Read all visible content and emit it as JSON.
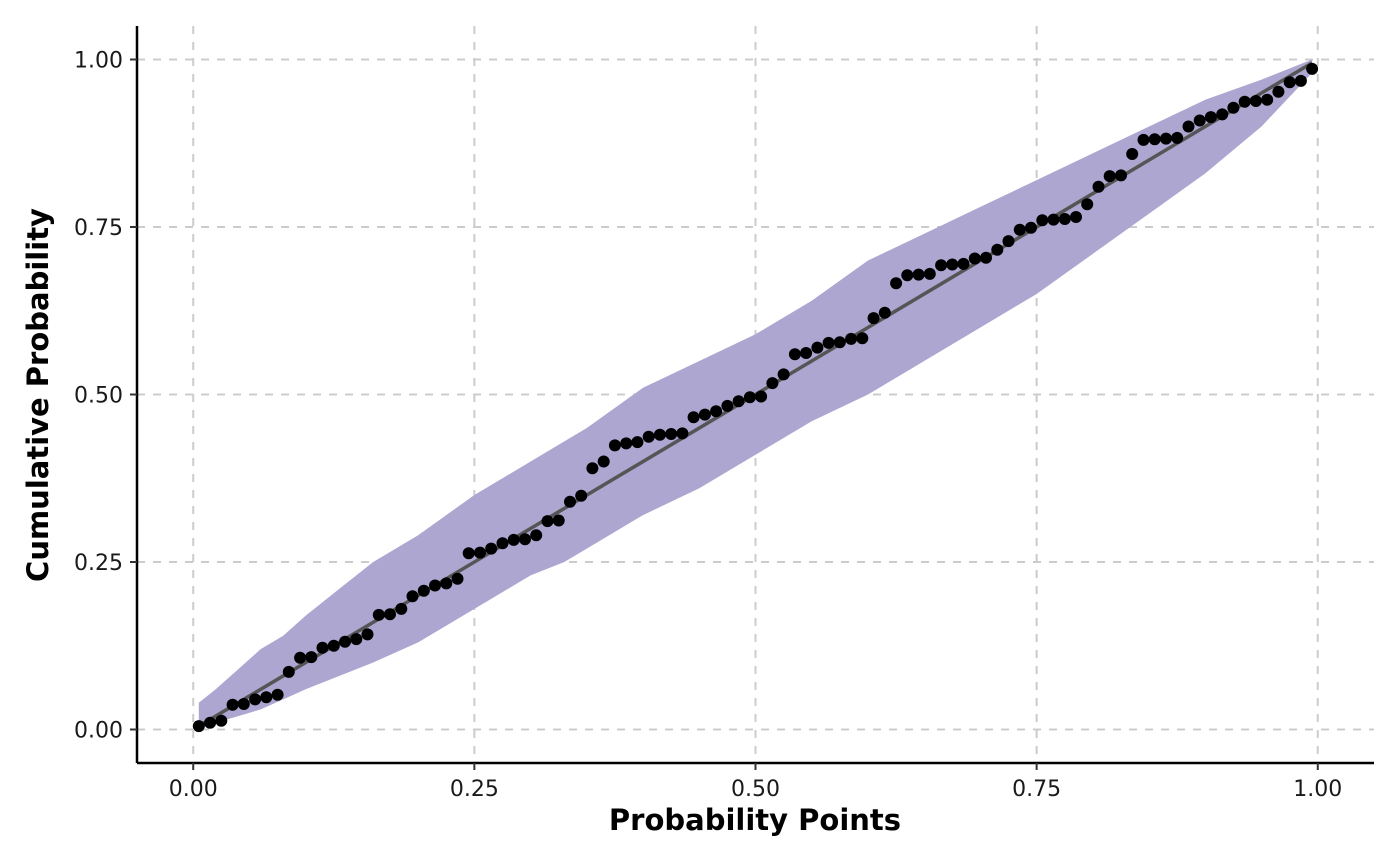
{
  "chart_data": {
    "type": "scatter",
    "title": "",
    "xlabel": "Probability Points",
    "ylabel": "Cumulative Probability",
    "xlim": [
      -0.05,
      1.05
    ],
    "ylim": [
      -0.05,
      1.05
    ],
    "x_ticks": [
      0,
      0.25,
      0.5,
      0.75,
      1
    ],
    "y_ticks": [
      0,
      0.25,
      0.5,
      0.75,
      1
    ],
    "x_tick_labels": [
      "0.00",
      "0.25",
      "0.50",
      "0.75",
      "1.00"
    ],
    "y_tick_labels": [
      "0.00",
      "0.25",
      "0.50",
      "0.75",
      "1.00"
    ],
    "grid": "dashed",
    "legend": "none",
    "colors": {
      "band": "#aca6d1",
      "line": "#555555",
      "points": "#000000",
      "grid": "#cccccc"
    },
    "reference_line": {
      "from": [
        0.005,
        0.005
      ],
      "to": [
        0.995,
        0.995
      ]
    },
    "confidence_band": {
      "x": [
        0.005,
        0.02,
        0.04,
        0.06,
        0.08,
        0.1,
        0.13,
        0.16,
        0.2,
        0.25,
        0.3,
        0.33,
        0.35,
        0.4,
        0.45,
        0.5,
        0.55,
        0.6,
        0.65,
        0.7,
        0.75,
        0.8,
        0.85,
        0.9,
        0.95,
        0.995
      ],
      "upper": [
        0.04,
        0.06,
        0.09,
        0.12,
        0.14,
        0.17,
        0.21,
        0.25,
        0.29,
        0.35,
        0.4,
        0.43,
        0.45,
        0.51,
        0.55,
        0.59,
        0.64,
        0.7,
        0.74,
        0.78,
        0.82,
        0.86,
        0.9,
        0.94,
        0.97,
        1.0
      ],
      "lower": [
        0.0,
        0.01,
        0.02,
        0.03,
        0.045,
        0.06,
        0.08,
        0.1,
        0.13,
        0.18,
        0.23,
        0.25,
        0.27,
        0.32,
        0.36,
        0.41,
        0.46,
        0.5,
        0.55,
        0.6,
        0.65,
        0.71,
        0.77,
        0.83,
        0.9,
        0.98
      ]
    },
    "series": [
      {
        "x": [
          0.005,
          0.015,
          0.025,
          0.035,
          0.045,
          0.055,
          0.065,
          0.075,
          0.085,
          0.095,
          0.105,
          0.115,
          0.125,
          0.135,
          0.145,
          0.155,
          0.165,
          0.175,
          0.185,
          0.195,
          0.205,
          0.215,
          0.225,
          0.235,
          0.245,
          0.255,
          0.265,
          0.275,
          0.285,
          0.295,
          0.305,
          0.315,
          0.325,
          0.335,
          0.345,
          0.355,
          0.365,
          0.375,
          0.385,
          0.395,
          0.405,
          0.415,
          0.425,
          0.435,
          0.445,
          0.455,
          0.465,
          0.475,
          0.485,
          0.495,
          0.505,
          0.515,
          0.525,
          0.535,
          0.545,
          0.555,
          0.565,
          0.575,
          0.585,
          0.595,
          0.605,
          0.615,
          0.625,
          0.635,
          0.645,
          0.655,
          0.665,
          0.675,
          0.685,
          0.695,
          0.705,
          0.715,
          0.725,
          0.735,
          0.745,
          0.755,
          0.765,
          0.775,
          0.785,
          0.795,
          0.805,
          0.815,
          0.825,
          0.835,
          0.845,
          0.855,
          0.865,
          0.875,
          0.885,
          0.895,
          0.905,
          0.915,
          0.925,
          0.935,
          0.945,
          0.955,
          0.965,
          0.975,
          0.985,
          0.995
        ],
        "y": [
          0.005,
          0.01,
          0.013,
          0.037,
          0.038,
          0.045,
          0.048,
          0.052,
          0.086,
          0.107,
          0.108,
          0.122,
          0.125,
          0.131,
          0.135,
          0.142,
          0.171,
          0.172,
          0.18,
          0.199,
          0.207,
          0.215,
          0.218,
          0.225,
          0.263,
          0.264,
          0.27,
          0.278,
          0.283,
          0.284,
          0.29,
          0.311,
          0.312,
          0.34,
          0.349,
          0.39,
          0.4,
          0.424,
          0.427,
          0.429,
          0.437,
          0.44,
          0.441,
          0.442,
          0.466,
          0.47,
          0.475,
          0.483,
          0.49,
          0.496,
          0.497,
          0.517,
          0.53,
          0.56,
          0.562,
          0.57,
          0.577,
          0.578,
          0.583,
          0.584,
          0.614,
          0.622,
          0.666,
          0.678,
          0.679,
          0.68,
          0.693,
          0.694,
          0.695,
          0.703,
          0.704,
          0.716,
          0.729,
          0.746,
          0.749,
          0.76,
          0.761,
          0.762,
          0.765,
          0.784,
          0.81,
          0.826,
          0.827,
          0.859,
          0.88,
          0.881,
          0.882,
          0.883,
          0.9,
          0.909,
          0.914,
          0.918,
          0.928,
          0.937,
          0.938,
          0.94,
          0.952,
          0.966,
          0.968,
          0.986
        ]
      }
    ]
  }
}
